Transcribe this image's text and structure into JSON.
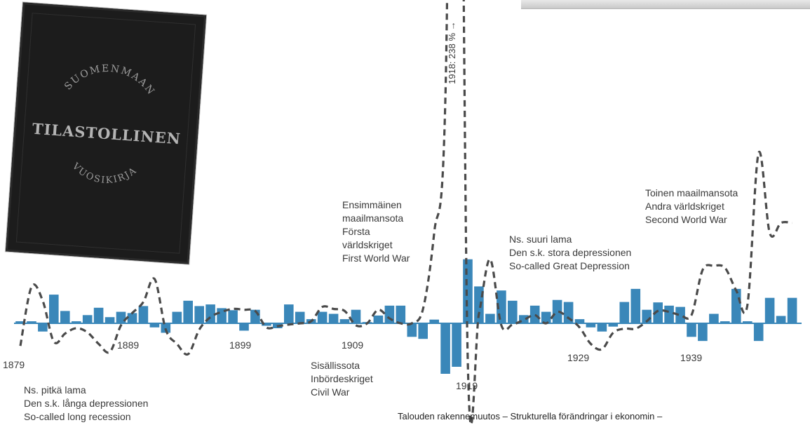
{
  "chart_data": {
    "type": "bar",
    "bars": [
      {
        "year": 1879,
        "value": 0.5
      },
      {
        "year": 1880,
        "value": 0.5
      },
      {
        "year": 1881,
        "value": -2.0
      },
      {
        "year": 1882,
        "value": 7.0
      },
      {
        "year": 1883,
        "value": 3.0
      },
      {
        "year": 1884,
        "value": 0.5
      },
      {
        "year": 1885,
        "value": 2.0
      },
      {
        "year": 1886,
        "value": 3.8
      },
      {
        "year": 1887,
        "value": 1.5
      },
      {
        "year": 1888,
        "value": 2.8
      },
      {
        "year": 1889,
        "value": 2.5
      },
      {
        "year": 1890,
        "value": 4.2
      },
      {
        "year": 1891,
        "value": -1.0
      },
      {
        "year": 1892,
        "value": -2.3
      },
      {
        "year": 1893,
        "value": 2.8
      },
      {
        "year": 1894,
        "value": 5.5
      },
      {
        "year": 1895,
        "value": 4.2
      },
      {
        "year": 1896,
        "value": 4.6
      },
      {
        "year": 1897,
        "value": 3.7
      },
      {
        "year": 1898,
        "value": 3.2
      },
      {
        "year": 1899,
        "value": -1.8
      },
      {
        "year": 1900,
        "value": 3.3
      },
      {
        "year": 1901,
        "value": -0.6
      },
      {
        "year": 1902,
        "value": -1.2
      },
      {
        "year": 1903,
        "value": 4.6
      },
      {
        "year": 1904,
        "value": 2.8
      },
      {
        "year": 1905,
        "value": 1.0
      },
      {
        "year": 1906,
        "value": 2.8
      },
      {
        "year": 1907,
        "value": 2.3
      },
      {
        "year": 1908,
        "value": 1.0
      },
      {
        "year": 1909,
        "value": 3.3
      },
      {
        "year": 1910,
        "value": 0.3
      },
      {
        "year": 1911,
        "value": 1.9
      },
      {
        "year": 1912,
        "value": 4.3
      },
      {
        "year": 1913,
        "value": 4.3
      },
      {
        "year": 1914,
        "value": -3.3
      },
      {
        "year": 1915,
        "value": -3.8
      },
      {
        "year": 1916,
        "value": 0.9
      },
      {
        "year": 1917,
        "value": -12.3
      },
      {
        "year": 1918,
        "value": -10.6
      },
      {
        "year": 1919,
        "value": 15.6
      },
      {
        "year": 1920,
        "value": 9.0
      },
      {
        "year": 1921,
        "value": 2.3
      },
      {
        "year": 1922,
        "value": 8.0
      },
      {
        "year": 1923,
        "value": 5.5
      },
      {
        "year": 1924,
        "value": 2.0
      },
      {
        "year": 1925,
        "value": 4.3
      },
      {
        "year": 1926,
        "value": 2.8
      },
      {
        "year": 1927,
        "value": 5.7
      },
      {
        "year": 1928,
        "value": 5.2
      },
      {
        "year": 1929,
        "value": 1.0
      },
      {
        "year": 1930,
        "value": -1.0
      },
      {
        "year": 1931,
        "value": -2.0
      },
      {
        "year": 1932,
        "value": -0.8
      },
      {
        "year": 1933,
        "value": 5.2
      },
      {
        "year": 1934,
        "value": 8.4
      },
      {
        "year": 1935,
        "value": 3.3
      },
      {
        "year": 1936,
        "value": 5.1
      },
      {
        "year": 1937,
        "value": 4.3
      },
      {
        "year": 1938,
        "value": 4.0
      },
      {
        "year": 1939,
        "value": -3.3
      },
      {
        "year": 1940,
        "value": -4.3
      },
      {
        "year": 1941,
        "value": 2.3
      },
      {
        "year": 1942,
        "value": 0.5
      },
      {
        "year": 1943,
        "value": 8.4
      },
      {
        "year": 1944,
        "value": 0.5
      },
      {
        "year": 1945,
        "value": -4.3
      },
      {
        "year": 1946,
        "value": 6.2
      },
      {
        "year": 1947,
        "value": 1.8
      },
      {
        "year": 1948,
        "value": 6.2
      }
    ],
    "line": [
      {
        "year": 1879,
        "value": -5.5
      },
      {
        "year": 1880,
        "value": 8.9
      },
      {
        "year": 1881,
        "value": 5.5
      },
      {
        "year": 1882,
        "value": -4.5
      },
      {
        "year": 1883,
        "value": -2.5
      },
      {
        "year": 1884,
        "value": -1.2
      },
      {
        "year": 1885,
        "value": -2.2
      },
      {
        "year": 1886,
        "value": -5.0
      },
      {
        "year": 1887,
        "value": -7.0
      },
      {
        "year": 1888,
        "value": -0.5
      },
      {
        "year": 1889,
        "value": 2.5
      },
      {
        "year": 1890,
        "value": 5.2
      },
      {
        "year": 1891,
        "value": 10.8
      },
      {
        "year": 1892,
        "value": -1.5
      },
      {
        "year": 1893,
        "value": -5.0
      },
      {
        "year": 1894,
        "value": -7.5
      },
      {
        "year": 1895,
        "value": -1.5
      },
      {
        "year": 1896,
        "value": 1.5
      },
      {
        "year": 1897,
        "value": 2.8
      },
      {
        "year": 1898,
        "value": 3.5
      },
      {
        "year": 1899,
        "value": 3.3
      },
      {
        "year": 1900,
        "value": 3.0
      },
      {
        "year": 1901,
        "value": -1.0
      },
      {
        "year": 1902,
        "value": -0.7
      },
      {
        "year": 1903,
        "value": -0.3
      },
      {
        "year": 1904,
        "value": 0.0
      },
      {
        "year": 1905,
        "value": 0.5
      },
      {
        "year": 1906,
        "value": 4.0
      },
      {
        "year": 1907,
        "value": 3.5
      },
      {
        "year": 1908,
        "value": 3.0
      },
      {
        "year": 1909,
        "value": -0.5
      },
      {
        "year": 1910,
        "value": 0.0
      },
      {
        "year": 1911,
        "value": 3.3
      },
      {
        "year": 1912,
        "value": 1.2
      },
      {
        "year": 1913,
        "value": 0.0
      },
      {
        "year": 1914,
        "value": 0.0
      },
      {
        "year": 1915,
        "value": 3.5
      },
      {
        "year": 1916,
        "value": 22.0
      },
      {
        "year": 1917,
        "value": 55.0
      },
      {
        "year": 1918,
        "value": 238.0
      },
      {
        "year": 1919,
        "value": -9.0
      },
      {
        "year": 1920,
        "value": 2.3
      },
      {
        "year": 1921,
        "value": 15.6
      },
      {
        "year": 1922,
        "value": -0.5
      },
      {
        "year": 1923,
        "value": -0.3
      },
      {
        "year": 1924,
        "value": 0.8
      },
      {
        "year": 1925,
        "value": 2.0
      },
      {
        "year": 1926,
        "value": 0.0
      },
      {
        "year": 1927,
        "value": 2.8
      },
      {
        "year": 1928,
        "value": 1.3
      },
      {
        "year": 1929,
        "value": -1.0
      },
      {
        "year": 1930,
        "value": -5.0
      },
      {
        "year": 1931,
        "value": -6.3
      },
      {
        "year": 1932,
        "value": -2.3
      },
      {
        "year": 1933,
        "value": -1.3
      },
      {
        "year": 1934,
        "value": -1.3
      },
      {
        "year": 1935,
        "value": 0.5
      },
      {
        "year": 1936,
        "value": 3.0
      },
      {
        "year": 1937,
        "value": 2.8
      },
      {
        "year": 1938,
        "value": 2.0
      },
      {
        "year": 1939,
        "value": 2.0
      },
      {
        "year": 1940,
        "value": 13.0
      },
      {
        "year": 1941,
        "value": 14.0
      },
      {
        "year": 1942,
        "value": 13.5
      },
      {
        "year": 1943,
        "value": 8.0
      },
      {
        "year": 1944,
        "value": 4.5
      },
      {
        "year": 1945,
        "value": 41.5
      },
      {
        "year": 1946,
        "value": 22.0
      },
      {
        "year": 1947,
        "value": 24.5
      },
      {
        "year": 1948,
        "value": 24.5
      }
    ],
    "year_labels": [
      "1879",
      "1889",
      "1899",
      "1909",
      "1919",
      "1929",
      "1939"
    ],
    "spike_label": "1918: 238 % →",
    "annotations": {
      "long_recession": [
        "Ns. pitkä lama",
        "Den s.k. långa depressionen",
        "So-called long recession"
      ],
      "first_world_war": [
        "Ensimmäinen",
        "maailmansota",
        "Första",
        "världskriget",
        "First World War"
      ],
      "civil_war": [
        "Sisällissota",
        "Inbördeskriget",
        "Civil War"
      ],
      "great_depression": [
        "Ns. suuri lama",
        "Den s.k. stora depressionen",
        "So-called Great Depression"
      ],
      "second_world_war": [
        "Toinen maailmansota",
        "Andra världskriget",
        "Second World War"
      ]
    },
    "footer": "Talouden rakennemuutos – Strukturella förändringar i ekonomin –",
    "colors": {
      "bar": "#3a87b9",
      "line": "#4a4a4a",
      "axis": "#3a87b9"
    }
  },
  "book": {
    "line1": "SUOMENMAAN",
    "line2": "TILASTOLLINEN",
    "line3": "VUOSIKIRJA"
  }
}
